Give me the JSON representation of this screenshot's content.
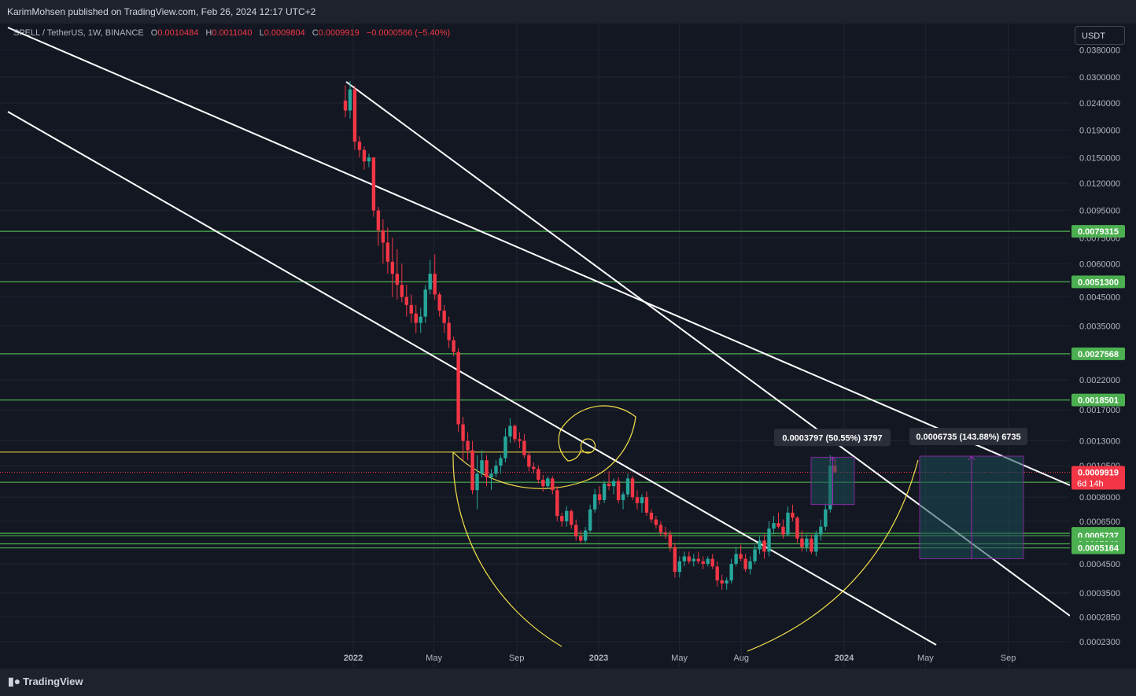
{
  "header": {
    "publisher": "KarimMohsen published on TradingView.com, Feb 26, 2024 12:17 UTC+2"
  },
  "symbol_row": {
    "name": "SPELL / TetherUS, 1W, BINANCE",
    "o_label": "O",
    "o": "0.0010484",
    "h_label": "H",
    "h": "0.0011040",
    "l_label": "L",
    "l": "0.0009804",
    "c_label": "C",
    "c": "0.0009919",
    "change": "−0.0000566 (−5.40%)"
  },
  "currency_button": "USDT",
  "footer": {
    "brand": "TradingView",
    "logo_icon": "tradingview-logo-icon"
  },
  "colors": {
    "background": "#131722",
    "up": "#26a69a",
    "down": "#f23645",
    "level": "#4caf50",
    "fib": "#f5e14a",
    "channel": "#ffffff",
    "box": "#1b4d55",
    "arrow": "#9c27b0"
  },
  "chart_data": {
    "type": "candlestick",
    "symbol": "SPELL / TetherUS",
    "interval": "1W",
    "exchange": "BINANCE",
    "y_scale": "log",
    "y_ticks": [
      "0.0380000",
      "0.0300000",
      "0.0240000",
      "0.0190000",
      "0.0150000",
      "0.0120000",
      "0.0095000",
      "0.0075000",
      "0.0060000",
      "0.0045000",
      "0.0035000",
      "0.0027000",
      "0.0022000",
      "0.0017000",
      "0.0013000",
      "0.0010500",
      "0.0008000",
      "0.0006500",
      "0.0004500",
      "0.0003500",
      "0.0002850",
      "0.0002300"
    ],
    "x_labels": [
      {
        "label": "2022",
        "date": "2022-01-01"
      },
      {
        "label": "May",
        "date": "2022-05-01"
      },
      {
        "label": "Sep",
        "date": "2022-09-01"
      },
      {
        "label": "2023",
        "date": "2023-01-01"
      },
      {
        "label": "May",
        "date": "2023-05-01"
      },
      {
        "label": "Aug",
        "date": "2023-08-01"
      },
      {
        "label": "2024",
        "date": "2024-01-01"
      },
      {
        "label": "May",
        "date": "2024-05-01"
      },
      {
        "label": "Sep",
        "date": "2024-09-01"
      }
    ],
    "levels": [
      {
        "label": "0.0079315",
        "value": 0.0079315
      },
      {
        "label": "0.0051300",
        "value": 0.00513
      },
      {
        "label": "0.0027568",
        "value": 0.0027568
      },
      {
        "label": "0.0018501",
        "value": 0.0018501
      },
      {
        "label": "0.0009100",
        "value": 0.00091
      },
      {
        "label": "0.0005858",
        "value": 0.0005858
      },
      {
        "label": "0.0005737",
        "value": 0.0005737
      },
      {
        "label": "0.0005348",
        "value": 0.0005348
      },
      {
        "label": "0.0005164",
        "value": 0.0005164
      }
    ],
    "yellow_level": 0.00118,
    "last_price": {
      "label": "0.0009919",
      "countdown": "6d 14h",
      "value": 0.0009919
    },
    "measurements": [
      {
        "label": "0.0003797 (50.55%) 3797",
        "from": 0.00075,
        "to": 0.00113
      },
      {
        "label": "0.0006735 (143.88%) 6735",
        "from": 0.00047,
        "to": 0.00114
      }
    ],
    "ohlc": [
      [
        0.0245,
        0.028,
        0.0212,
        0.0225
      ],
      [
        0.0225,
        0.029,
        0.021,
        0.027
      ],
      [
        0.027,
        0.0278,
        0.016,
        0.0172
      ],
      [
        0.0172,
        0.018,
        0.015,
        0.016
      ],
      [
        0.016,
        0.0165,
        0.0135,
        0.0145
      ],
      [
        0.0145,
        0.0155,
        0.0138,
        0.015
      ],
      [
        0.015,
        0.015,
        0.009,
        0.0095
      ],
      [
        0.0095,
        0.0098,
        0.007,
        0.008
      ],
      [
        0.008,
        0.0088,
        0.006,
        0.0072
      ],
      [
        0.0072,
        0.0082,
        0.0055,
        0.0061
      ],
      [
        0.0061,
        0.0075,
        0.0045,
        0.0055
      ],
      [
        0.0055,
        0.0068,
        0.0044,
        0.005
      ],
      [
        0.005,
        0.006,
        0.0043,
        0.0045
      ],
      [
        0.0045,
        0.005,
        0.0038,
        0.0042
      ],
      [
        0.0042,
        0.0046,
        0.0036,
        0.0039
      ],
      [
        0.0039,
        0.0042,
        0.0033,
        0.0036
      ],
      [
        0.0036,
        0.0041,
        0.0033,
        0.0038
      ],
      [
        0.0038,
        0.005,
        0.0036,
        0.0048
      ],
      [
        0.0048,
        0.0062,
        0.0046,
        0.0055
      ],
      [
        0.0055,
        0.0065,
        0.0044,
        0.0046
      ],
      [
        0.0046,
        0.0047,
        0.0038,
        0.004
      ],
      [
        0.004,
        0.0042,
        0.0033,
        0.0036
      ],
      [
        0.0036,
        0.0038,
        0.0029,
        0.0031
      ],
      [
        0.0031,
        0.0032,
        0.0027,
        0.0028
      ],
      [
        0.0028,
        0.0029,
        0.0014,
        0.0015
      ],
      [
        0.0015,
        0.0016,
        0.0011,
        0.0013
      ],
      [
        0.0013,
        0.0014,
        0.0011,
        0.0012
      ],
      [
        0.0012,
        0.0013,
        0.00082,
        0.00085
      ],
      [
        0.00085,
        0.00115,
        0.00072,
        0.00098
      ],
      [
        0.00098,
        0.0012,
        0.00095,
        0.0011
      ],
      [
        0.0011,
        0.00115,
        0.00088,
        0.00095
      ],
      [
        0.00095,
        0.00102,
        0.00085,
        0.00098
      ],
      [
        0.00098,
        0.0011,
        0.00095,
        0.00105
      ],
      [
        0.00105,
        0.00115,
        0.00098,
        0.00112
      ],
      [
        0.00112,
        0.00145,
        0.00108,
        0.00135
      ],
      [
        0.00135,
        0.00158,
        0.00128,
        0.00148
      ],
      [
        0.00148,
        0.0015,
        0.00128,
        0.00132
      ],
      [
        0.00132,
        0.0014,
        0.00122,
        0.0013
      ],
      [
        0.0013,
        0.00138,
        0.00112,
        0.00115
      ],
      [
        0.00115,
        0.00118,
        0.001,
        0.00104
      ],
      [
        0.00104,
        0.00108,
        0.00098,
        0.00102
      ],
      [
        0.00102,
        0.00105,
        0.0009,
        0.00093
      ],
      [
        0.00093,
        0.00097,
        0.00084,
        0.00088
      ],
      [
        0.00088,
        0.00096,
        0.00086,
        0.00094
      ],
      [
        0.00094,
        0.00096,
        0.00082,
        0.00085
      ],
      [
        0.00085,
        0.00088,
        0.00065,
        0.00068
      ],
      [
        0.00068,
        0.0007,
        0.00062,
        0.00065
      ],
      [
        0.00065,
        0.00074,
        0.00062,
        0.00071
      ],
      [
        0.00071,
        0.00072,
        0.00061,
        0.00063
      ],
      [
        0.00063,
        0.00066,
        0.00055,
        0.00057
      ],
      [
        0.00057,
        0.0006,
        0.00054,
        0.00055
      ],
      [
        0.00055,
        0.00062,
        0.00054,
        0.0006
      ],
      [
        0.0006,
        0.00075,
        0.00059,
        0.00072
      ],
      [
        0.00072,
        0.00086,
        0.0007,
        0.00082
      ],
      [
        0.00082,
        0.00088,
        0.00075,
        0.00078
      ],
      [
        0.00078,
        0.00092,
        0.00076,
        0.0009
      ],
      [
        0.0009,
        0.001,
        0.00085,
        0.00088
      ],
      [
        0.00088,
        0.00094,
        0.00082,
        0.00092
      ],
      [
        0.00092,
        0.00095,
        0.00076,
        0.00078
      ],
      [
        0.00078,
        0.00084,
        0.00072,
        0.00082
      ],
      [
        0.00082,
        0.00098,
        0.0008,
        0.00094
      ],
      [
        0.00094,
        0.00096,
        0.00078,
        0.0008
      ],
      [
        0.0008,
        0.00085,
        0.00072,
        0.00076
      ],
      [
        0.00076,
        0.00082,
        0.0007,
        0.0008
      ],
      [
        0.0008,
        0.00084,
        0.00068,
        0.0007
      ],
      [
        0.0007,
        0.00072,
        0.00064,
        0.00066
      ],
      [
        0.00066,
        0.00068,
        0.00061,
        0.00063
      ],
      [
        0.00063,
        0.00065,
        0.00057,
        0.00059
      ],
      [
        0.00059,
        0.00062,
        0.00056,
        0.00058
      ],
      [
        0.00058,
        0.0006,
        0.0005,
        0.00052
      ],
      [
        0.00052,
        0.00054,
        0.0004,
        0.00042
      ],
      [
        0.00042,
        0.00048,
        0.0004,
        0.00046
      ],
      [
        0.00046,
        0.0005,
        0.00044,
        0.00048
      ],
      [
        0.00048,
        0.0005,
        0.00045,
        0.00046
      ],
      [
        0.00046,
        0.00049,
        0.00044,
        0.00047
      ],
      [
        0.00047,
        0.0005,
        0.00045,
        0.00046
      ],
      [
        0.00046,
        0.00048,
        0.00043,
        0.00045
      ],
      [
        0.00045,
        0.00048,
        0.00044,
        0.00047
      ],
      [
        0.00047,
        0.00049,
        0.00043,
        0.00044
      ],
      [
        0.00044,
        0.00046,
        0.00037,
        0.00039
      ],
      [
        0.00039,
        0.00041,
        0.00036,
        0.00038
      ],
      [
        0.00038,
        0.0004,
        0.00036,
        0.00039
      ],
      [
        0.00039,
        0.00047,
        0.00038,
        0.00045
      ],
      [
        0.00045,
        0.00052,
        0.00044,
        0.00049
      ],
      [
        0.00049,
        0.00053,
        0.00046,
        0.00047
      ],
      [
        0.00047,
        0.00049,
        0.00042,
        0.00043
      ],
      [
        0.00043,
        0.00048,
        0.00041,
        0.00046
      ],
      [
        0.00046,
        0.00053,
        0.00045,
        0.00051
      ],
      [
        0.00051,
        0.00057,
        0.00049,
        0.00055
      ],
      [
        0.00055,
        0.00058,
        0.00047,
        0.0005
      ],
      [
        0.0005,
        0.00065,
        0.00048,
        0.00061
      ],
      [
        0.00061,
        0.00068,
        0.00058,
        0.00064
      ],
      [
        0.00064,
        0.0007,
        0.00061,
        0.00062
      ],
      [
        0.00062,
        0.00066,
        0.00056,
        0.00058
      ],
      [
        0.00058,
        0.00074,
        0.00057,
        0.0007
      ],
      [
        0.0007,
        0.00075,
        0.00065,
        0.00067
      ],
      [
        0.00067,
        0.00068,
        0.00054,
        0.00056
      ],
      [
        0.00056,
        0.0006,
        0.0005,
        0.00052
      ],
      [
        0.00052,
        0.00058,
        0.0005,
        0.00056
      ],
      [
        0.00056,
        0.00058,
        0.00049,
        0.0005
      ],
      [
        0.0005,
        0.0006,
        0.00048,
        0.00058
      ],
      [
        0.00058,
        0.00066,
        0.00055,
        0.00062
      ],
      [
        0.00062,
        0.00076,
        0.0006,
        0.00072
      ],
      [
        0.00072,
        0.00115,
        0.0007,
        0.00105
      ],
      [
        0.00105,
        0.0011,
        0.00098,
        0.00099
      ]
    ]
  }
}
